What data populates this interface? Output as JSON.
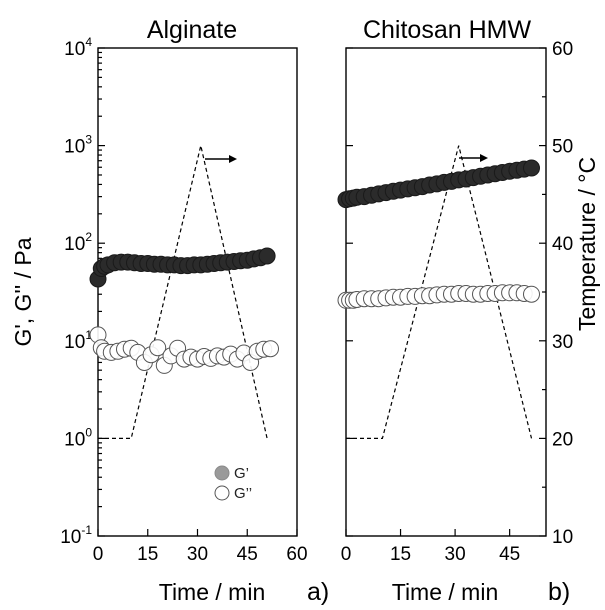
{
  "chart_data": [
    {
      "type": "scatter",
      "panel_tag": "a)",
      "title": "Alginate",
      "xlabel": "Time / min",
      "ylabel": "G', G'' / Pa",
      "xlim": [
        0,
        60
      ],
      "ylim_log10": [
        -1,
        4
      ],
      "x_ticks": [
        "0",
        "15",
        "30",
        "45",
        "60"
      ],
      "y_ticks": [
        {
          "base": "10",
          "exp": "-1"
        },
        {
          "base": "10",
          "exp": "0"
        },
        {
          "base": "10",
          "exp": "1"
        },
        {
          "base": "10",
          "exp": "2"
        },
        {
          "base": "10",
          "exp": "3"
        },
        {
          "base": "10",
          "exp": "4"
        }
      ],
      "series": [
        {
          "name": "G’",
          "marker": "filled-circle",
          "color": "#2b2b2b",
          "x": [
            0,
            1,
            2,
            3,
            5,
            7,
            9,
            11,
            13,
            15,
            17,
            19,
            21,
            23,
            25,
            27,
            29,
            31,
            33,
            35,
            37,
            39,
            41,
            43,
            45,
            47,
            49,
            51
          ],
          "y": [
            43,
            55,
            58,
            60,
            63,
            64,
            64,
            63,
            62,
            62,
            61,
            61,
            60,
            60,
            59,
            59,
            60,
            60,
            61,
            62,
            63,
            64,
            65,
            66,
            67,
            69,
            71,
            74
          ]
        },
        {
          "name": "G’’",
          "marker": "open-circle",
          "color": "#555555",
          "x": [
            0,
            1,
            2,
            4,
            6,
            8,
            10,
            12,
            14,
            16,
            18,
            20,
            22,
            24,
            26,
            28,
            30,
            32,
            34,
            36,
            38,
            40,
            42,
            44,
            46,
            48,
            50,
            52
          ],
          "y": [
            11.5,
            8.5,
            7.8,
            7.6,
            7.8,
            8.2,
            8.4,
            7.6,
            6.0,
            7.2,
            8.5,
            5.6,
            7.0,
            8.4,
            6.5,
            6.8,
            6.5,
            6.9,
            6.6,
            7.0,
            6.8,
            7.3,
            6.5,
            7.5,
            6.0,
            7.8,
            8.2,
            8.3
          ]
        }
      ],
      "temperature_trace": {
        "style": "dashed",
        "points": [
          [
            0,
            20
          ],
          [
            10,
            20
          ],
          [
            31,
            50
          ],
          [
            51,
            20
          ]
        ]
      },
      "arrow_direction": "right"
    },
    {
      "type": "scatter",
      "panel_tag": "b)",
      "title": "Chitosan HMW",
      "xlabel": "Time / min",
      "y2label": "Temperature / °C",
      "xlim": [
        0,
        55
      ],
      "y2lim": [
        10,
        60
      ],
      "x_ticks": [
        "0",
        "15",
        "30",
        "45"
      ],
      "y2_ticks": [
        "10",
        "20",
        "30",
        "40",
        "50",
        "60"
      ],
      "series": [
        {
          "name": "G’",
          "marker": "filled-circle",
          "color": "#2b2b2b",
          "x": [
            0,
            1,
            2,
            3,
            5,
            7,
            9,
            11,
            13,
            15,
            17,
            19,
            21,
            23,
            25,
            27,
            29,
            31,
            33,
            35,
            37,
            39,
            41,
            43,
            45,
            47,
            49,
            51
          ],
          "y": [
            280,
            285,
            290,
            295,
            300,
            310,
            320,
            330,
            340,
            350,
            360,
            370,
            380,
            395,
            405,
            420,
            430,
            445,
            455,
            470,
            485,
            500,
            515,
            530,
            545,
            560,
            575,
            590
          ]
        },
        {
          "name": "G’’",
          "marker": "open-circle",
          "color": "#555555",
          "x": [
            0,
            1,
            2,
            3,
            5,
            7,
            9,
            11,
            13,
            15,
            17,
            19,
            21,
            23,
            25,
            27,
            29,
            31,
            33,
            35,
            37,
            39,
            41,
            43,
            45,
            47,
            49,
            51
          ],
          "y": [
            26,
            26,
            26,
            26.5,
            27,
            27,
            27,
            27.5,
            28,
            28,
            28.5,
            28.5,
            29,
            29,
            29.5,
            30,
            30,
            30.5,
            30.5,
            30,
            30,
            30.5,
            30.5,
            31,
            31,
            31,
            30.5,
            30
          ]
        }
      ],
      "temperature_trace": {
        "style": "dashed",
        "points": [
          [
            0,
            20
          ],
          [
            10,
            20
          ],
          [
            31,
            50
          ],
          [
            51,
            20
          ]
        ]
      },
      "arrow_direction": "right"
    }
  ],
  "legend": {
    "items": [
      {
        "label": "G’",
        "marker": "filled-circle"
      },
      {
        "label": "G’’",
        "marker": "open-circle"
      }
    ]
  }
}
